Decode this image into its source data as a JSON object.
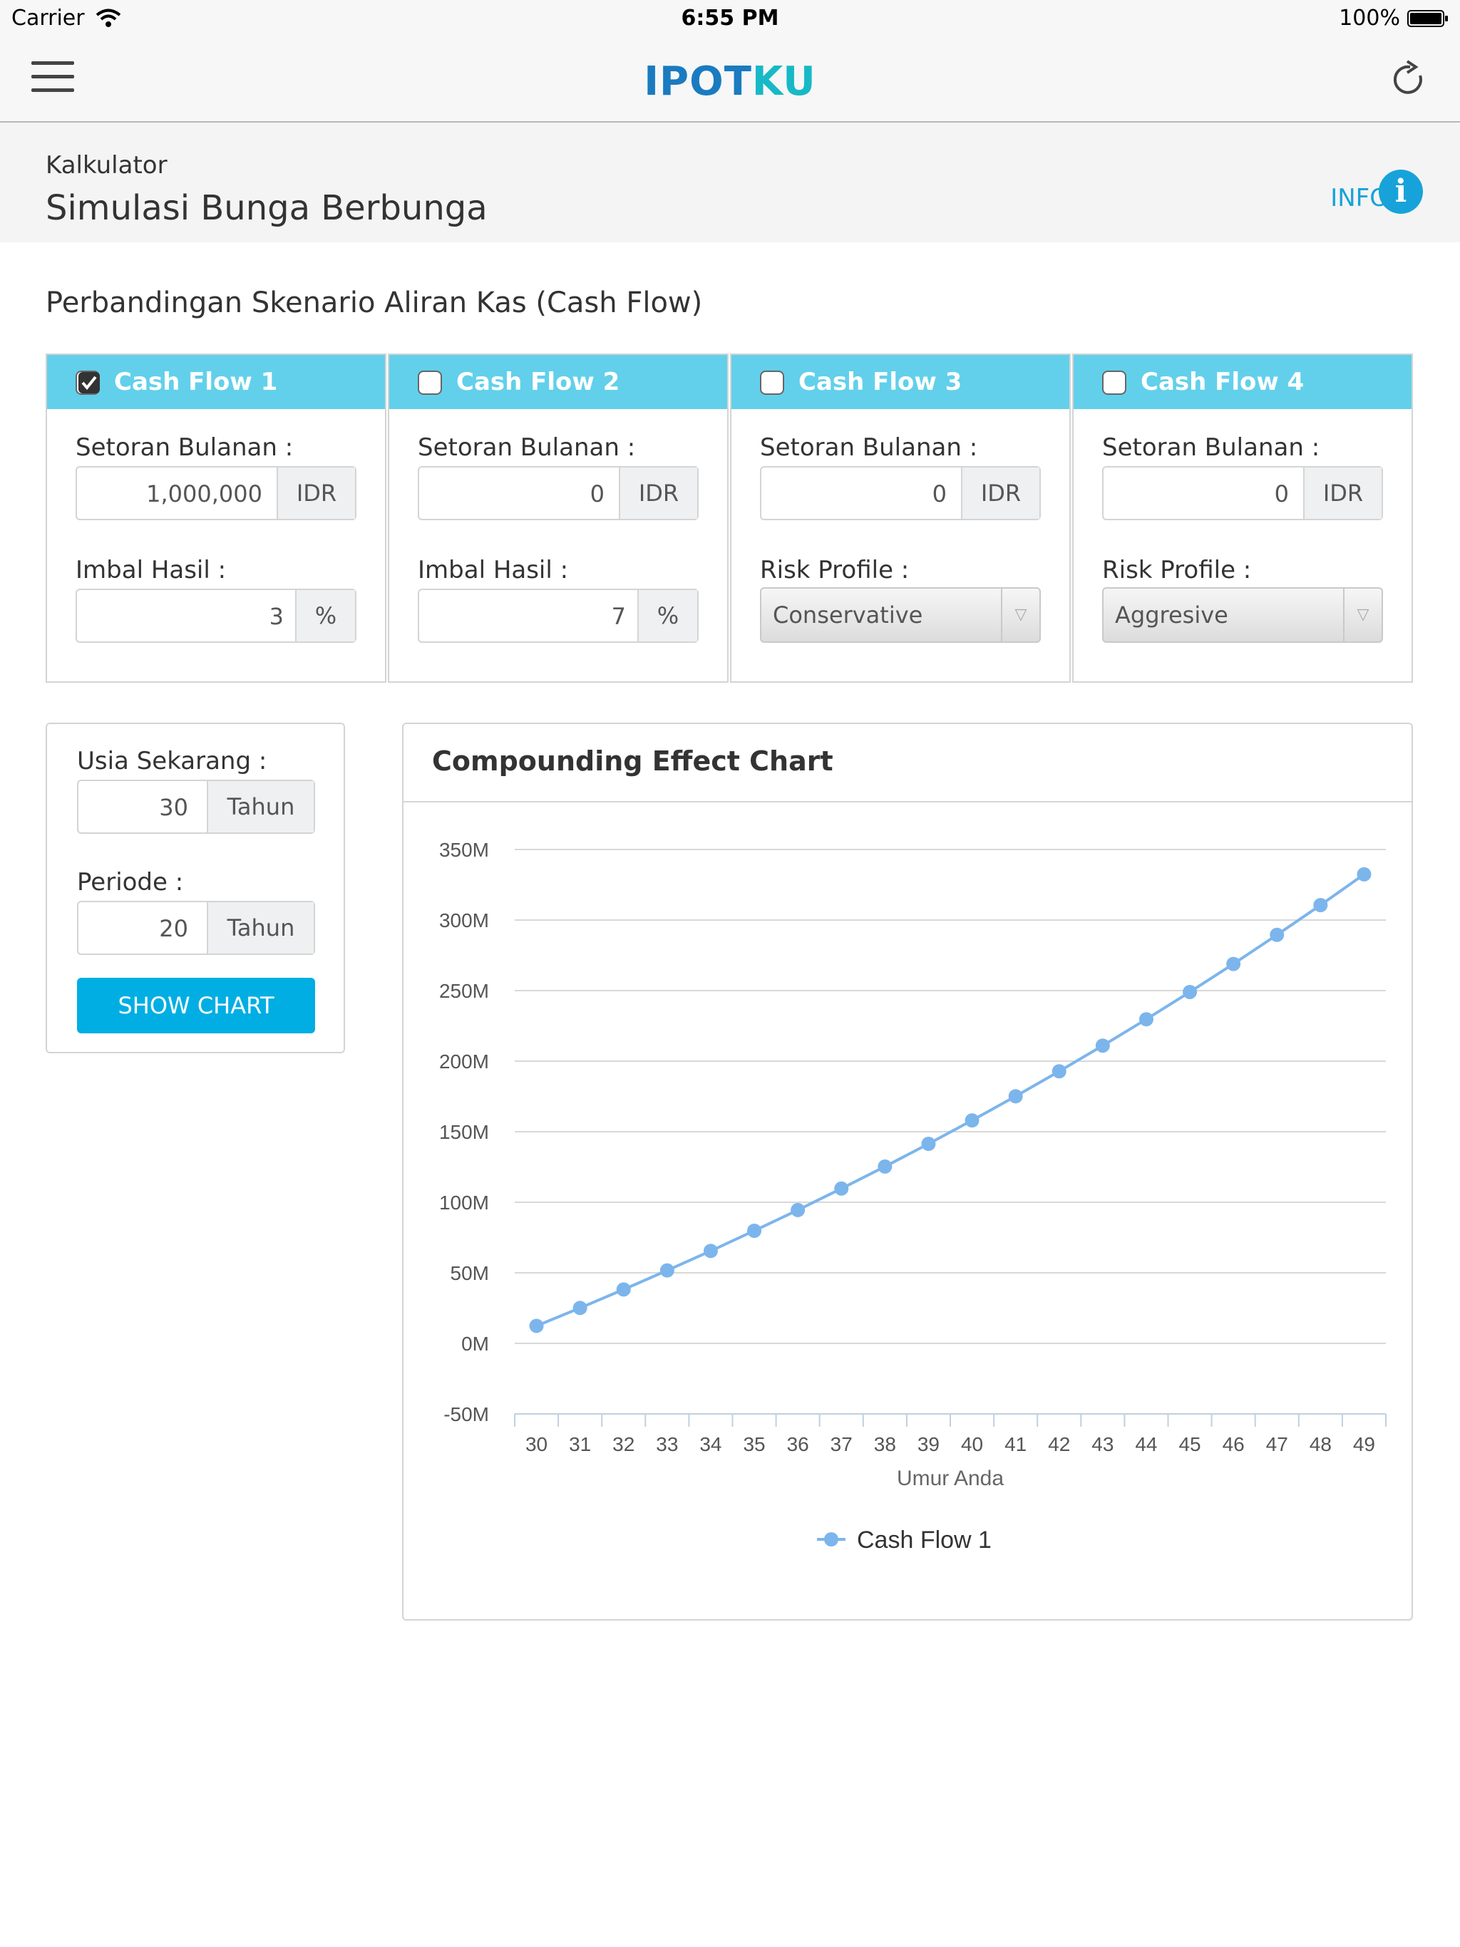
{
  "status_bar": {
    "carrier": "Carrier",
    "time": "6:55 PM",
    "battery": "100%"
  },
  "header": {
    "logo_part1": "IPOT",
    "logo_part2": "KU",
    "menu_icon": "hamburger-icon",
    "refresh_icon": "refresh-icon"
  },
  "page": {
    "breadcrumb": "Kalkulator",
    "title": "Simulasi Bunga Berbunga",
    "info_label": "INFO",
    "info_icon": "info-icon"
  },
  "section_title": "Perbandingan Skenario Aliran Kas (Cash Flow)",
  "cash_flows": [
    {
      "title": "Cash Flow 1",
      "checked": true,
      "deposit_label": "Setoran Bulanan :",
      "deposit_value": "1,000,000",
      "currency": "IDR",
      "second_label": "Imbal Hasil :",
      "second_value": "3",
      "second_unit": "%"
    },
    {
      "title": "Cash Flow 2",
      "checked": false,
      "deposit_label": "Setoran Bulanan :",
      "deposit_value": "0",
      "currency": "IDR",
      "second_label": "Imbal Hasil :",
      "second_value": "7",
      "second_unit": "%"
    },
    {
      "title": "Cash Flow 3",
      "checked": false,
      "deposit_label": "Setoran Bulanan :",
      "deposit_value": "0",
      "currency": "IDR",
      "second_label": "Risk Profile :",
      "second_value": "Conservative"
    },
    {
      "title": "Cash Flow 4",
      "checked": false,
      "deposit_label": "Setoran Bulanan :",
      "deposit_value": "0",
      "currency": "IDR",
      "second_label": "Risk Profile :",
      "second_value": "Aggresive"
    }
  ],
  "settings": {
    "age_label": "Usia Sekarang :",
    "age_value": "30",
    "age_unit": "Tahun",
    "period_label": "Periode :",
    "period_value": "20",
    "period_unit": "Tahun",
    "button_label": "SHOW CHART"
  },
  "chart_title": "Compounding Effect Chart",
  "colors": {
    "accent": "#00aee3",
    "header_cyan": "#62d0ea",
    "series": "#7cb5ec",
    "logo_blue": "#1a7bc0",
    "logo_teal": "#17b9c6"
  },
  "chart_data": {
    "type": "line",
    "xlabel": "Umur Anda",
    "ylabel": "",
    "x": [
      30,
      31,
      32,
      33,
      34,
      35,
      36,
      37,
      38,
      39,
      40,
      41,
      42,
      43,
      44,
      45,
      46,
      47,
      48,
      49
    ],
    "y_ticks": [
      "350M",
      "300M",
      "250M",
      "200M",
      "150M",
      "100M",
      "50M",
      "0M",
      "-50M"
    ],
    "ylim": [
      -50,
      350
    ],
    "y_unit": "M",
    "grid": true,
    "legend": "bottom-center",
    "series": [
      {
        "name": "Cash Flow 1",
        "values": [
          12.4,
          25.1,
          38.2,
          51.7,
          65.5,
          79.8,
          94.5,
          109.7,
          125.3,
          141.4,
          158.0,
          175.1,
          192.8,
          211.0,
          229.7,
          249.0,
          268.9,
          289.5,
          310.6,
          332.4
        ]
      }
    ]
  }
}
